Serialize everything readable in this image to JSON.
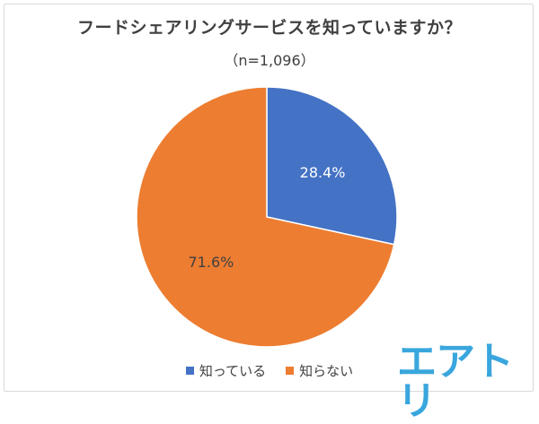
{
  "chart_data": {
    "type": "pie",
    "title": "フードシェアリングサービスを知っていますか？",
    "subtitle": "（n=1,096）",
    "categories": [
      "知っている",
      "知らない"
    ],
    "values": [
      28.4,
      71.6
    ],
    "data_labels": [
      "28.4%",
      "71.6%"
    ],
    "colors": [
      "#4472c4",
      "#ed7d31"
    ],
    "start_angle": "12 o'clock",
    "direction": "clockwise",
    "legend_position": "bottom"
  },
  "legend": {
    "item1": "知っている",
    "item2": "知らない"
  },
  "logo": {
    "text": "エアトリ",
    "color": "#39a6dd"
  }
}
